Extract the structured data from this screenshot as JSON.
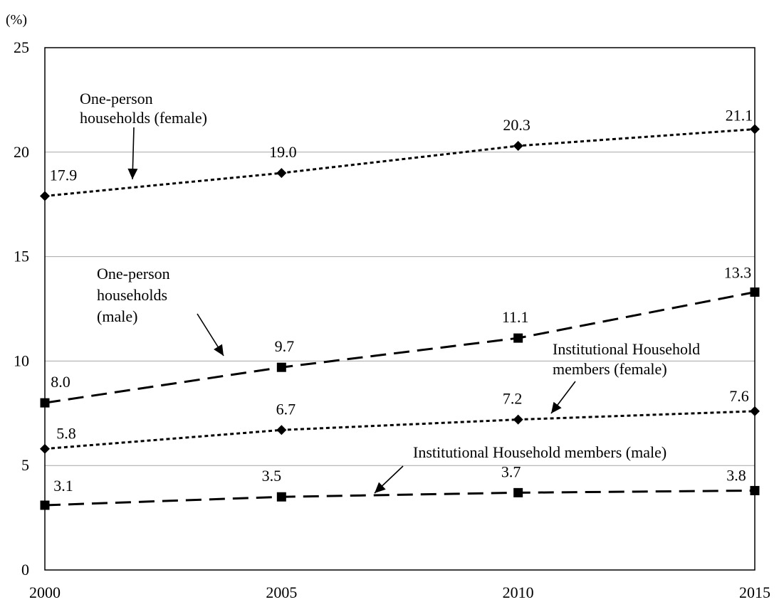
{
  "chart_data": {
    "type": "line",
    "title": "",
    "xlabel": "",
    "ylabel": "",
    "unit_label": "(%)",
    "x": [
      2000,
      2005,
      2010,
      2015
    ],
    "x_tick_labels": [
      "2000",
      "2005",
      "2010",
      "2015"
    ],
    "ylim": [
      0,
      25
    ],
    "y_ticks": [
      0,
      5,
      10,
      15,
      20,
      25
    ],
    "y_tick_labels": [
      "0",
      "5",
      "10",
      "15",
      "20",
      "25"
    ],
    "grid": "horizontal",
    "legend": "none",
    "series": [
      {
        "key": "oph_female",
        "values": [
          17.9,
          19.0,
          20.3,
          21.1
        ],
        "labels": [
          "17.9",
          "19.0",
          "20.3",
          "21.1"
        ],
        "marker": "diamond",
        "line_style": "dotted",
        "color": "#000000"
      },
      {
        "key": "oph_male",
        "values": [
          8.0,
          9.7,
          11.1,
          13.3
        ],
        "labels": [
          "8.0",
          "9.7",
          "11.1",
          "13.3"
        ],
        "marker": "square",
        "line_style": "dashed",
        "color": "#000000"
      },
      {
        "key": "ihm_female",
        "values": [
          5.8,
          6.7,
          7.2,
          7.6
        ],
        "labels": [
          "5.8",
          "6.7",
          "7.2",
          "7.6"
        ],
        "marker": "diamond",
        "line_style": "dotted",
        "color": "#000000"
      },
      {
        "key": "ihm_male",
        "values": [
          3.1,
          3.5,
          3.7,
          3.8
        ],
        "labels": [
          "3.1",
          "3.5",
          "3.7",
          "3.8"
        ],
        "marker": "square",
        "line_style": "dashed",
        "color": "#000000"
      }
    ],
    "annotations": [
      {
        "key": "anno-oph-female",
        "lines": [
          "One-person",
          "households (female)"
        ]
      },
      {
        "key": "anno-oph-male",
        "lines": [
          "One-person",
          "households",
          "(male)"
        ]
      },
      {
        "key": "anno-ihm-female",
        "lines": [
          "Institutional Household",
          "members (female)"
        ]
      },
      {
        "key": "anno-ihm-male",
        "lines": [
          "Institutional Household members (male)"
        ]
      }
    ]
  }
}
